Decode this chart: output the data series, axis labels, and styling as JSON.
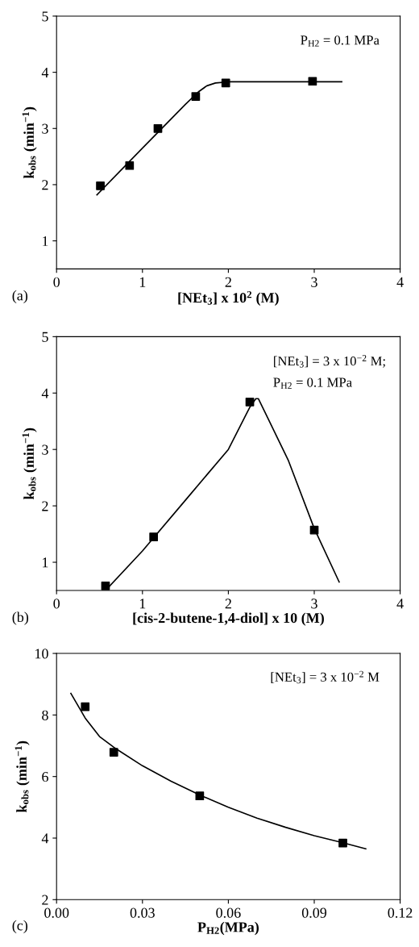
{
  "chart_data": [
    {
      "type": "scatter",
      "xlabel": "[NEt$_{3}$] x 10$^{2}$ (M)",
      "ylabel": "k$_{obs}$ (min$^{−1}$)",
      "xlim": [
        0,
        4
      ],
      "xticks": [
        0,
        1,
        2,
        3,
        4
      ],
      "ylim": [
        0.5,
        5
      ],
      "yticks": [
        1,
        2,
        3,
        4,
        5
      ],
      "grid": false,
      "legend": false,
      "annotations": [
        "P$_{H2}$ = 0.1 MPa",
        "(a)"
      ],
      "series": [
        {
          "marker": "square",
          "color": "#000000",
          "x": [
            0.51,
            0.85,
            1.18,
            1.62,
            1.97,
            2.98
          ],
          "values": [
            1.98,
            2.34,
            3.0,
            3.57,
            3.81,
            3.84
          ]
        },
        {
          "type": "line",
          "marker": "none",
          "line_style": "solid",
          "color": "#000000",
          "x": [
            0.47,
            1.0,
            1.5,
            1.65,
            1.75,
            1.85,
            2.0,
            3.32
          ],
          "values": [
            1.82,
            2.65,
            3.43,
            3.65,
            3.76,
            3.81,
            3.83,
            3.83
          ]
        }
      ]
    },
    {
      "type": "scatter",
      "xlabel": "[cis-2-butene-1,4-diol] x 10 (M)",
      "ylabel": "k$_{obs}$ (min$^{−1}$)",
      "xlim": [
        0,
        4
      ],
      "xticks": [
        0,
        1,
        2,
        3,
        4
      ],
      "ylim": [
        0.5,
        5
      ],
      "yticks": [
        1,
        2,
        3,
        4,
        5
      ],
      "grid": false,
      "legend": false,
      "annotations": [
        "[NEt$_{3}$] = 3 x 10$^{−2}$ M;",
        "P$_{H2}$ = 0.1 MPa",
        "(b)"
      ],
      "series": [
        {
          "marker": "square",
          "color": "#000000",
          "x": [
            0.57,
            1.13,
            2.25,
            3.0
          ],
          "values": [
            0.58,
            1.45,
            3.84,
            1.57
          ]
        },
        {
          "type": "line",
          "marker": "none",
          "line_style": "solid",
          "color": "#000000",
          "x": [
            0.6,
            1.0,
            1.5,
            2.0,
            2.25,
            2.32,
            2.35,
            2.7,
            3.0,
            3.29
          ],
          "values": [
            0.55,
            1.2,
            2.1,
            3.0,
            3.75,
            3.9,
            3.9,
            2.8,
            1.6,
            0.65
          ]
        }
      ]
    },
    {
      "type": "scatter",
      "xlabel": "P$_{H2}$(MPa)",
      "ylabel": "k$_{obs}$ (min$^{−1}$)",
      "xlim": [
        0,
        0.12
      ],
      "xticks": [
        {
          "value": 0,
          "label": "0.00"
        },
        {
          "value": 0.03,
          "label": "0.03"
        },
        {
          "value": 0.06,
          "label": "0.06"
        },
        {
          "value": 0.09,
          "label": "0.09"
        },
        {
          "value": 0.12,
          "label": "0.12"
        }
      ],
      "ylim": [
        2,
        10
      ],
      "yticks": [
        2,
        4,
        6,
        8,
        10
      ],
      "grid": false,
      "legend": false,
      "annotations": [
        "[NEt$_{3}$] = 3 x 10$^{−2}$ M",
        "(c)"
      ],
      "series": [
        {
          "marker": "square",
          "color": "#000000",
          "x": [
            0.01,
            0.02,
            0.05,
            0.1
          ],
          "values": [
            8.27,
            6.79,
            5.37,
            3.84
          ]
        },
        {
          "type": "line",
          "marker": "none",
          "line_style": "solid",
          "color": "#000000",
          "x": [
            0.005,
            0.01,
            0.015,
            0.02,
            0.03,
            0.04,
            0.05,
            0.06,
            0.07,
            0.08,
            0.09,
            0.1,
            0.108
          ],
          "values": [
            8.7,
            7.9,
            7.3,
            6.95,
            6.35,
            5.85,
            5.4,
            5.0,
            4.65,
            4.35,
            4.08,
            3.85,
            3.65
          ]
        }
      ]
    }
  ]
}
